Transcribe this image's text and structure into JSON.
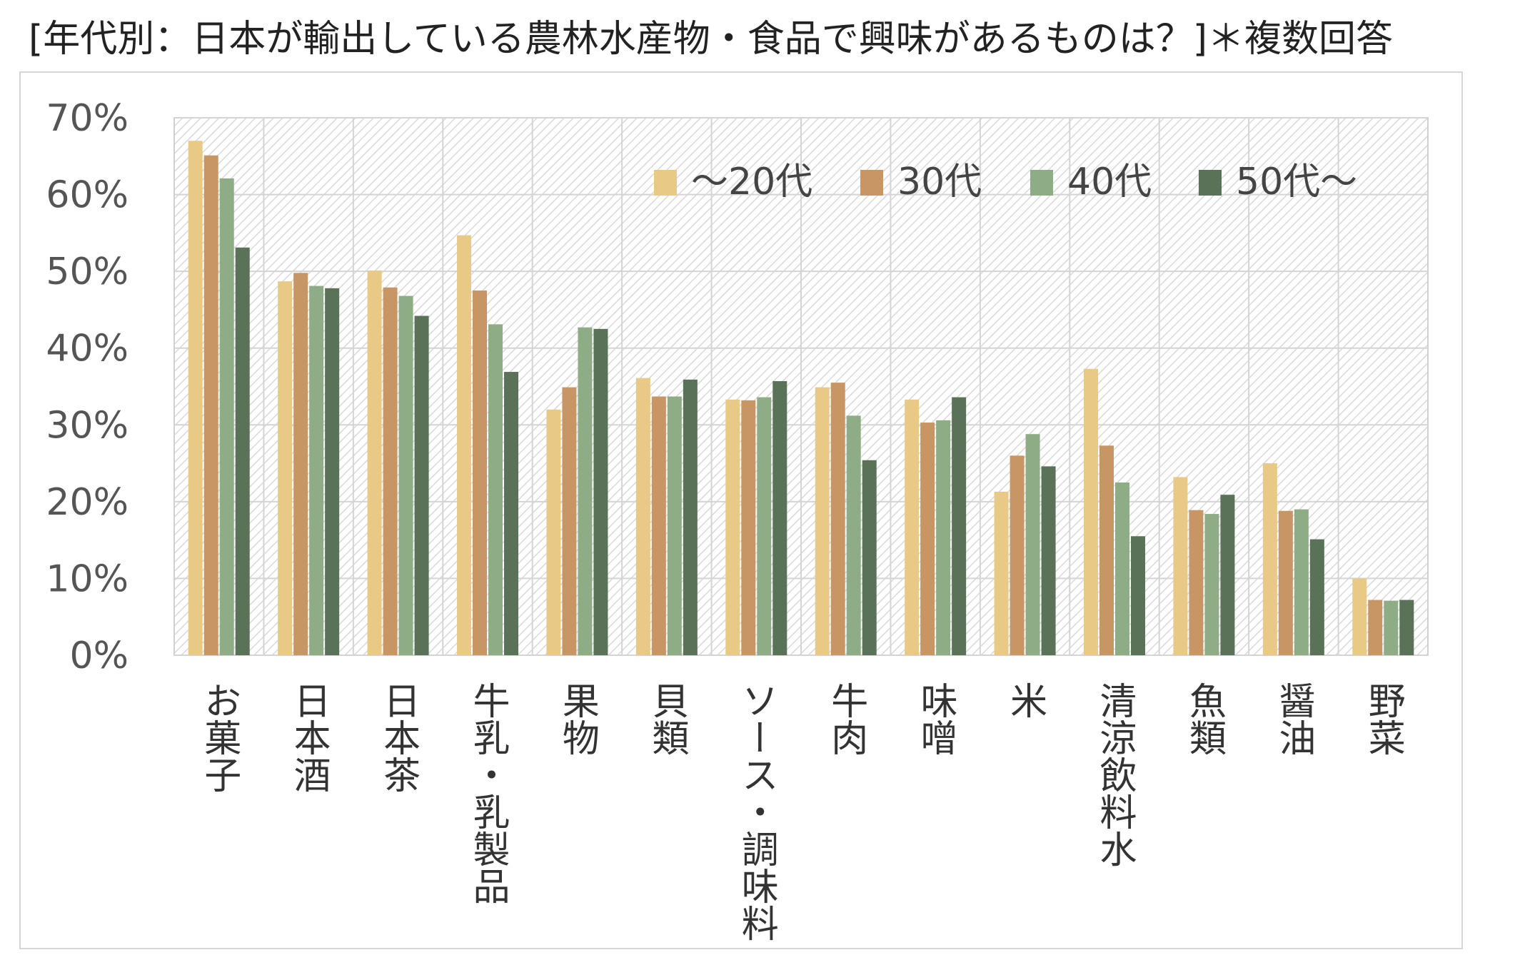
{
  "chart_data": {
    "type": "bar",
    "title": "[年代別：日本が輸出している農林水産物・食品で興味があるものは？]＊複数回答",
    "xlabel": "",
    "ylabel": "",
    "ylim": [
      0,
      70
    ],
    "y_ticks": [
      "0%",
      "10%",
      "20%",
      "30%",
      "40%",
      "50%",
      "60%",
      "70%"
    ],
    "y_tick_values": [
      0,
      10,
      20,
      30,
      40,
      50,
      60,
      70
    ],
    "legend_position": "top-right",
    "categories": [
      "お菓子",
      "日本酒",
      "日本茶",
      "牛乳・乳製品",
      "果物",
      "貝類",
      "ソース・調味料",
      "牛肉",
      "味噌",
      "米",
      "清涼飲料水",
      "魚類",
      "醤油",
      "野菜"
    ],
    "series": [
      {
        "name": "～20代",
        "color": "#E8CA86",
        "values": [
          67.0,
          48.7,
          50.1,
          54.7,
          32.0,
          36.1,
          33.3,
          34.9,
          33.3,
          21.3,
          37.3,
          23.2,
          25.0,
          10.0
        ]
      },
      {
        "name": "30代",
        "color": "#C89664",
        "values": [
          65.1,
          49.8,
          47.9,
          47.5,
          34.9,
          33.7,
          33.2,
          35.5,
          30.3,
          26.0,
          27.3,
          18.9,
          18.8,
          7.2
        ]
      },
      {
        "name": "40代",
        "color": "#8EAD86",
        "values": [
          62.1,
          48.1,
          46.8,
          43.1,
          42.7,
          33.7,
          33.6,
          31.2,
          30.6,
          28.8,
          22.5,
          18.4,
          19.0,
          7.1
        ]
      },
      {
        "name": "50代～",
        "color": "#5A7257",
        "values": [
          53.1,
          47.8,
          44.2,
          36.9,
          42.5,
          35.9,
          35.7,
          25.4,
          33.6,
          24.6,
          15.5,
          20.9,
          15.1,
          7.2
        ]
      }
    ]
  }
}
